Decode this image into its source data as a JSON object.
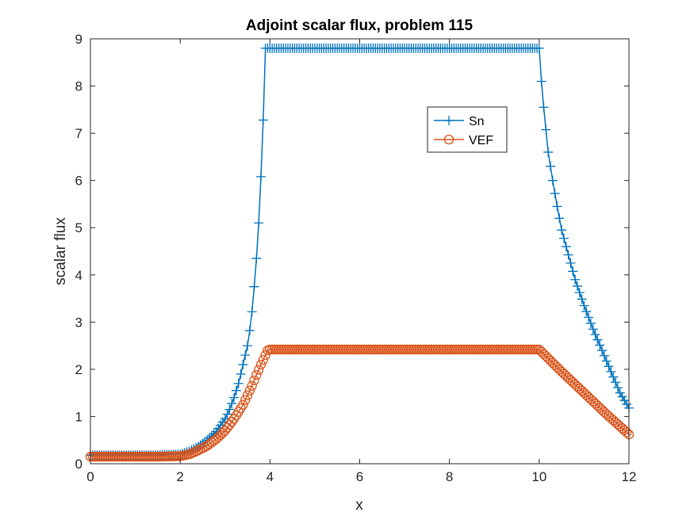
{
  "chart_data": {
    "type": "line",
    "title": "Adjoint scalar flux, problem 115",
    "xlabel": "x",
    "ylabel": "scalar flux",
    "xlim": [
      0,
      12
    ],
    "ylim": [
      0,
      9
    ],
    "xticks": [
      "0",
      "2",
      "4",
      "6",
      "8",
      "10",
      "12"
    ],
    "yticks": [
      "0",
      "1",
      "2",
      "3",
      "4",
      "5",
      "6",
      "7",
      "8",
      "9"
    ],
    "grid": false,
    "legend_position": "top-right (inside axes)",
    "series": [
      {
        "name": "Sn",
        "color": "#0072BD",
        "marker": "plus",
        "x": [
          0.0,
          0.5,
          1.0,
          1.5,
          2.0,
          2.2,
          2.4,
          2.6,
          2.8,
          3.0,
          3.1,
          3.2,
          3.3,
          3.4,
          3.5,
          3.55,
          3.6,
          3.65,
          3.7,
          3.75,
          3.8,
          3.85,
          3.9,
          3.95,
          4.0,
          10.0,
          10.05,
          10.1,
          10.2,
          10.3,
          10.4,
          10.5,
          10.6,
          10.8,
          11.0,
          11.2,
          11.4,
          11.6,
          11.8,
          12.0
        ],
        "y": [
          0.18,
          0.18,
          0.18,
          0.18,
          0.2,
          0.26,
          0.36,
          0.5,
          0.68,
          0.95,
          1.15,
          1.4,
          1.7,
          2.1,
          2.5,
          2.82,
          3.22,
          3.75,
          4.35,
          5.1,
          6.08,
          7.28,
          8.8,
          8.8,
          8.8,
          8.8,
          8.1,
          7.55,
          6.6,
          6.0,
          5.45,
          4.95,
          4.6,
          3.9,
          3.35,
          2.85,
          2.4,
          1.95,
          1.5,
          1.18
        ]
      },
      {
        "name": "VEF",
        "color": "#D95319",
        "marker": "circle",
        "x": [
          0.0,
          0.5,
          1.0,
          1.5,
          2.0,
          2.2,
          2.4,
          2.6,
          2.8,
          3.0,
          3.2,
          3.4,
          3.6,
          3.7,
          3.8,
          3.9,
          3.95,
          4.0,
          10.0,
          10.5,
          11.0,
          11.5,
          12.0
        ],
        "y": [
          0.15,
          0.15,
          0.15,
          0.15,
          0.16,
          0.2,
          0.28,
          0.38,
          0.52,
          0.7,
          0.95,
          1.25,
          1.65,
          1.88,
          2.1,
          2.3,
          2.4,
          2.42,
          2.42,
          1.95,
          1.5,
          1.05,
          0.62
        ]
      }
    ]
  }
}
